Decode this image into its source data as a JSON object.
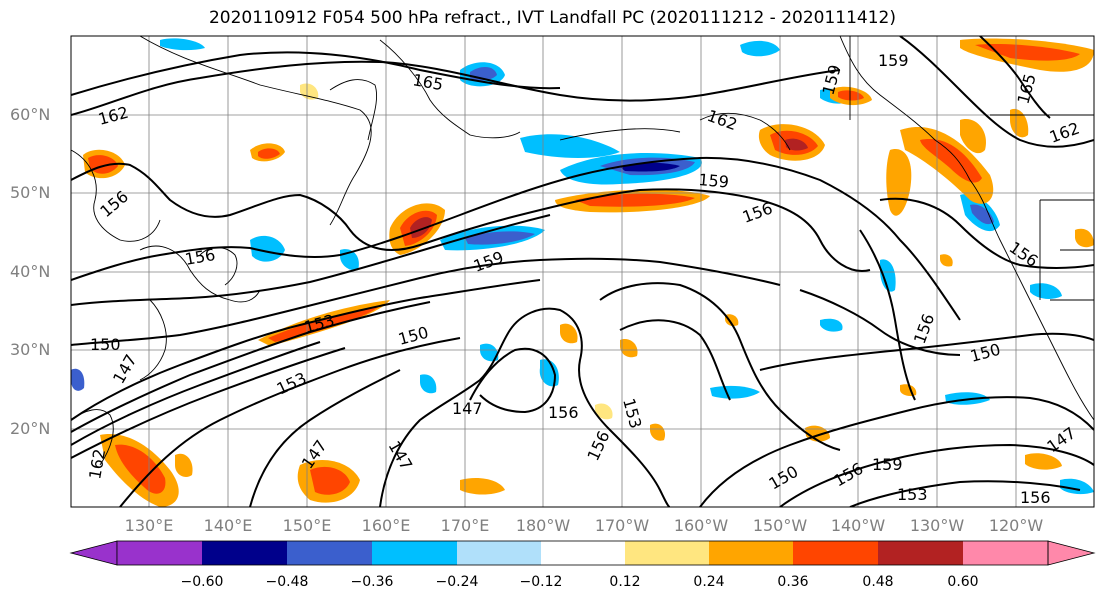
{
  "title": "2020110912 F054 500 hPa refract., IVT Landfall PC (2020111212 - 2020111412)",
  "lat_labels": [
    "60°N",
    "50°N",
    "40°N",
    "30°N",
    "20°N"
  ],
  "lon_labels": [
    "130°E",
    "140°E",
    "150°E",
    "160°E",
    "170°E",
    "180°W",
    "170°W",
    "160°W",
    "150°W",
    "140°W",
    "130°W",
    "120°W"
  ],
  "colorbar": {
    "levels": [
      "−0.60",
      "−0.48",
      "−0.36",
      "−0.24",
      "−0.12",
      "0.12",
      "0.24",
      "0.36",
      "0.48",
      "0.60"
    ],
    "colors": [
      "#9932cc",
      "#00008b",
      "#3b5fcd",
      "#00bfff",
      "#b0e0fa",
      "#ffffff",
      "#ffe680",
      "#ffa500",
      "#ff4500",
      "#b22222",
      "#ff88aa"
    ]
  },
  "contour_labels": [
    "165",
    "162",
    "162",
    "159",
    "156",
    "159",
    "159",
    "156",
    "156",
    "153",
    "150",
    "150",
    "147",
    "147",
    "147",
    "153",
    "156",
    "156",
    "153",
    "147",
    "150",
    "156",
    "159",
    "153",
    "156",
    "147",
    "150",
    "156",
    "162",
    "165",
    "159",
    "162",
    "156"
  ]
}
